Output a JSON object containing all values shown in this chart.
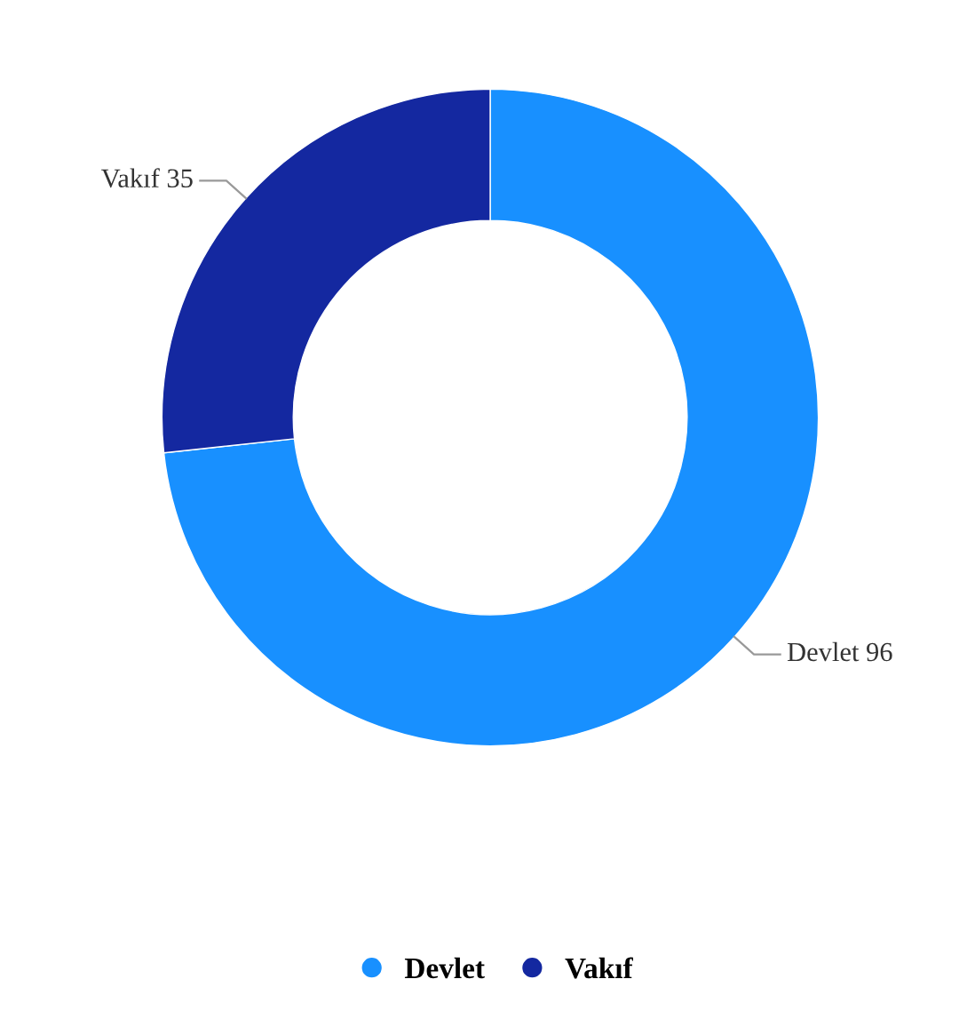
{
  "chart_data": {
    "type": "donut",
    "categories": [
      "Devlet",
      "Vakıf"
    ],
    "values": [
      96,
      35
    ],
    "colors": [
      "#1890ff",
      "#1428a0"
    ],
    "data_labels": true,
    "legend": "bottom"
  }
}
